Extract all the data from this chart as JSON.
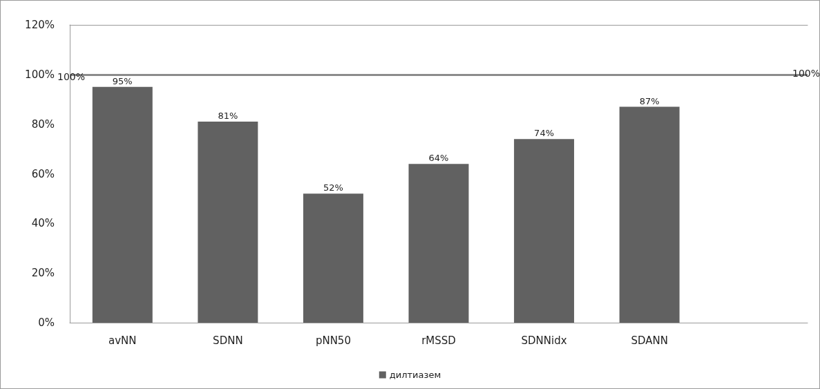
{
  "chart_data": {
    "type": "bar",
    "categories": [
      "avNN",
      "SDNN",
      "pNN50",
      "rMSSD",
      "SDNNidx",
      "SDANN",
      null
    ],
    "series": [
      {
        "name": "дилтиазем",
        "color": "#616161",
        "values": [
          95,
          81,
          52,
          64,
          74,
          87,
          null
        ],
        "value_labels": [
          "95%",
          "81%",
          "52%",
          "64%",
          "74%",
          "87%",
          null
        ]
      }
    ],
    "ylim": [
      0,
      120
    ],
    "yticks": [
      {
        "value": 0,
        "label": "0%"
      },
      {
        "value": 20,
        "label": "20%"
      },
      {
        "value": 40,
        "label": "40%"
      },
      {
        "value": 60,
        "label": "60%"
      },
      {
        "value": 80,
        "label": "80%"
      },
      {
        "value": 100,
        "label": "100%"
      },
      {
        "value": 120,
        "label": "120%"
      }
    ],
    "ref_lines": [
      {
        "axis": "y",
        "value": 100,
        "label": "100%",
        "color": "#8c8c8c"
      }
    ],
    "grid": false,
    "legend": "bottom"
  }
}
